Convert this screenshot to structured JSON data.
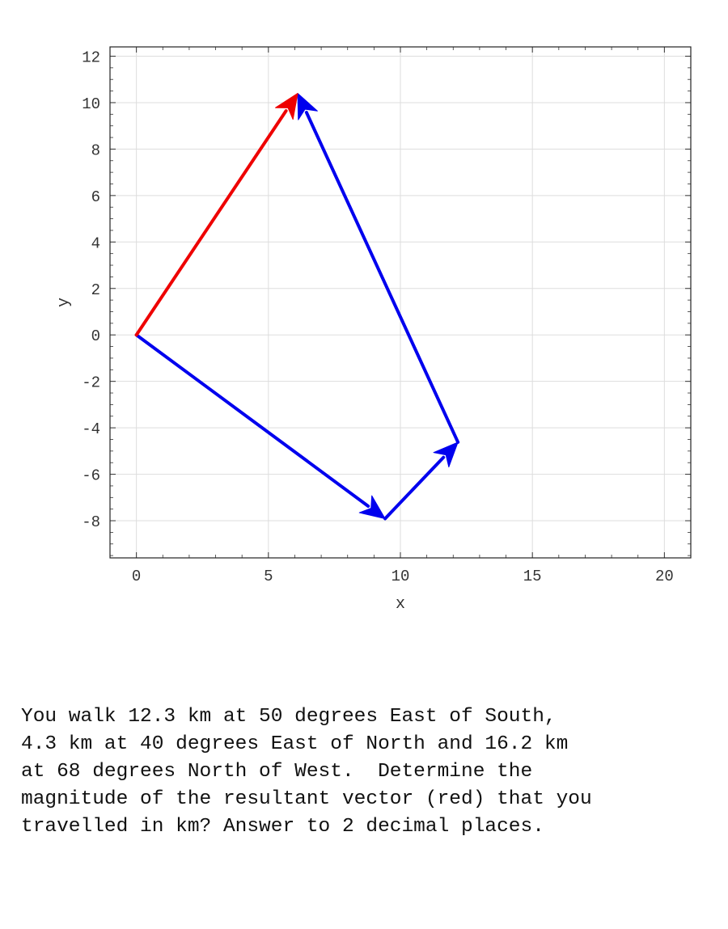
{
  "chart_data": {
    "type": "vector-diagram",
    "xlabel": "x",
    "ylabel": "y",
    "xlim": [
      -1,
      21
    ],
    "ylim": [
      -9.6,
      12.4
    ],
    "x_ticks": [
      0,
      5,
      10,
      15,
      20
    ],
    "y_ticks": [
      -8,
      -6,
      -4,
      -2,
      0,
      2,
      4,
      6,
      8,
      10,
      12
    ],
    "grid": true,
    "vectors": [
      {
        "name": "leg-1",
        "from": [
          0,
          0
        ],
        "to": [
          9.42,
          -7.91
        ],
        "color": "#0000ee"
      },
      {
        "name": "leg-2",
        "from": [
          9.42,
          -7.91
        ],
        "to": [
          12.18,
          -4.62
        ],
        "color": "#0000ee"
      },
      {
        "name": "leg-3",
        "from": [
          12.18,
          -4.62
        ],
        "to": [
          6.11,
          10.4
        ],
        "color": "#0000ee"
      },
      {
        "name": "resultant",
        "from": [
          0,
          0
        ],
        "to": [
          6.11,
          10.4
        ],
        "color": "#ee0000"
      }
    ]
  },
  "question": {
    "lines": [
      "You walk 12.3 km at 50 degrees East of South,",
      "4.3 km at 40 degrees East of North and 16.2 km",
      "at 68 degrees North of West.  Determine the",
      "magnitude of the resultant vector (red) that you",
      "travelled in km? Answer to 2 decimal places."
    ]
  }
}
